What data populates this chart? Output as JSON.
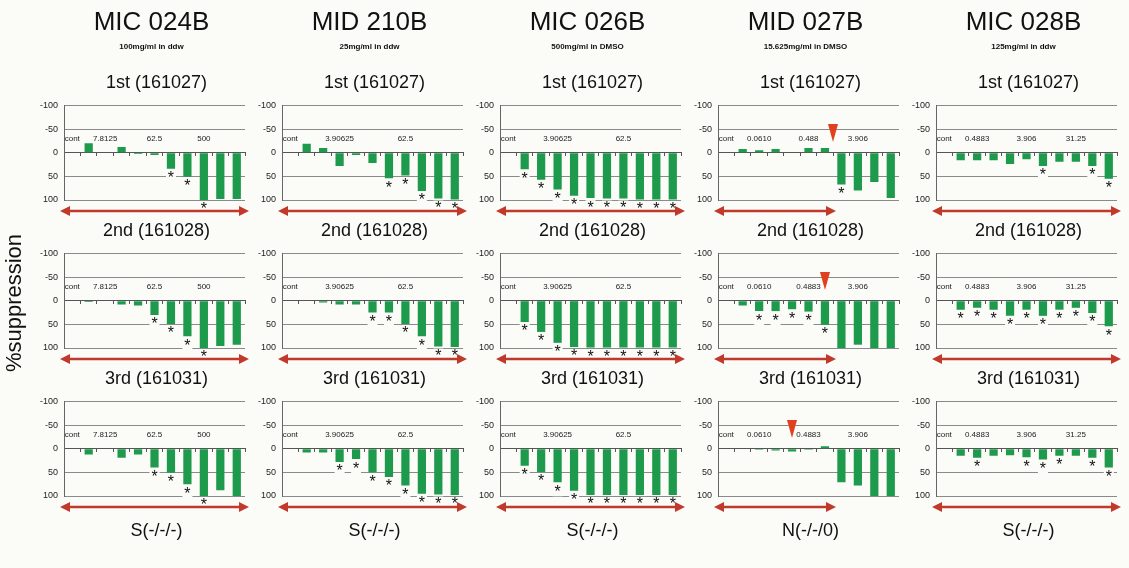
{
  "chart_data": [
    {
      "type": "bar",
      "title": "1st (161027)",
      "annotations": [
        "MIC 024B",
        "100mg/ml in ddw"
      ],
      "categories": [
        "cont",
        null,
        "7.8125",
        null,
        null,
        "62.5",
        null,
        null,
        "500",
        null,
        null
      ],
      "values": [
        0,
        -20,
        1,
        -12,
        3,
        5,
        34,
        51,
        100,
        98,
        98
      ],
      "value_labels": [
        null,
        null,
        null,
        null,
        null,
        null,
        "*",
        "*",
        "*",
        null,
        null
      ],
      "color": "#1e9a4c",
      "ylim": [
        100,
        -100
      ],
      "yticks": [
        -100,
        -50,
        0,
        50,
        100
      ],
      "grid": "y"
    },
    {
      "type": "bar",
      "title": "1st (161027)",
      "annotations": [
        "MID 210B",
        "25mg/ml in ddw"
      ],
      "categories": [
        "cont",
        null,
        null,
        "3.90625",
        null,
        null,
        null,
        "62.5",
        null,
        null,
        null
      ],
      "values": [
        0,
        -19,
        -10,
        28,
        5,
        22,
        54,
        48,
        81,
        97,
        99
      ],
      "value_labels": [
        null,
        null,
        null,
        null,
        null,
        null,
        "*",
        "*",
        "*",
        "*",
        "*"
      ],
      "color": "#1e9a4c",
      "ylim": [
        100,
        -100
      ],
      "yticks": [
        -100,
        -50,
        0,
        50,
        100
      ],
      "grid": "y"
    },
    {
      "type": "bar",
      "title": "1st (161027)",
      "annotations": [
        "MIC 026B",
        "500mg/ml in DMSO"
      ],
      "categories": [
        "cont",
        null,
        null,
        "3.90625",
        null,
        null,
        null,
        "62.5",
        null,
        null,
        null
      ],
      "values": [
        0,
        35,
        57,
        78,
        91,
        96,
        97,
        97,
        99,
        99,
        99
      ],
      "value_labels": [
        null,
        "*",
        "*",
        "*",
        "*",
        "*",
        "*",
        "*",
        "*",
        "*",
        "*"
      ],
      "color": "#1e9a4c",
      "ylim": [
        100,
        -100
      ],
      "yticks": [
        -100,
        -50,
        0,
        50,
        100
      ],
      "grid": "y"
    },
    {
      "type": "bar",
      "title": "1st (161027)",
      "annotations": [
        "MID 027B",
        "15.625mg/ml in DMSO"
      ],
      "categories": [
        "cont",
        null,
        "0.0610",
        null,
        null,
        "0.488",
        null,
        null,
        "3.906",
        null,
        null
      ],
      "values": [
        0,
        -8,
        -5,
        -8,
        null,
        -10,
        -10,
        67,
        80,
        62,
        96
      ],
      "value_labels": [
        null,
        null,
        null,
        null,
        null,
        null,
        null,
        "*",
        null,
        null,
        null
      ],
      "color": "#1e9a4c",
      "ylim": [
        100,
        -100
      ],
      "yticks": [
        -100,
        -50,
        0,
        50,
        100
      ],
      "grid": "y"
    },
    {
      "type": "bar",
      "title": "1st (161027)",
      "annotations": [
        "MIC 028B",
        "125mg/ml in ddw"
      ],
      "categories": [
        "cont",
        null,
        "0.4883",
        null,
        null,
        "3.906",
        null,
        null,
        "31.25",
        null,
        null
      ],
      "values": [
        0,
        16,
        16,
        16,
        24,
        14,
        28,
        19,
        19,
        28,
        55
      ],
      "value_labels": [
        null,
        null,
        null,
        null,
        null,
        null,
        "*",
        null,
        null,
        "*",
        "*"
      ],
      "color": "#1e9a4c",
      "ylim": [
        100,
        -100
      ],
      "yticks": [
        -100,
        -50,
        0,
        50,
        100
      ],
      "grid": "y"
    },
    {
      "type": "bar",
      "title": "2nd (161028)",
      "ylabel": "%suppression",
      "categories": [
        "cont",
        null,
        "7.8125",
        null,
        null,
        "62.5",
        null,
        null,
        "500",
        null,
        null
      ],
      "values": [
        0,
        3,
        1,
        8,
        10,
        30,
        49,
        75,
        100,
        96,
        93
      ],
      "value_labels": [
        null,
        null,
        null,
        null,
        null,
        "*",
        "*",
        "*",
        "*",
        null,
        null
      ],
      "color": "#1e9a4c",
      "ylim": [
        100,
        -100
      ],
      "yticks": [
        -100,
        -50,
        0,
        50,
        100
      ],
      "grid": "y"
    },
    {
      "type": "bar",
      "title": "2nd (161028)",
      "categories": [
        "cont",
        null,
        null,
        "3.90625",
        null,
        null,
        null,
        "62.5",
        null,
        null,
        null
      ],
      "values": [
        0,
        1,
        4,
        8,
        8,
        25,
        25,
        49,
        75,
        97,
        98
      ],
      "value_labels": [
        null,
        null,
        null,
        null,
        null,
        "*",
        "*",
        "*",
        "*",
        "*",
        "*"
      ],
      "color": "#1e9a4c",
      "ylim": [
        100,
        -100
      ],
      "yticks": [
        -100,
        -50,
        0,
        50,
        100
      ],
      "grid": "y"
    },
    {
      "type": "bar",
      "title": "2nd (161028)",
      "categories": [
        "cont",
        null,
        null,
        "3.90625",
        null,
        null,
        null,
        "62.5",
        null,
        null,
        null
      ],
      "values": [
        0,
        45,
        66,
        89,
        98,
        99,
        99,
        99,
        99,
        99,
        99
      ],
      "value_labels": [
        null,
        "*",
        "*",
        "*",
        "*",
        "*",
        "*",
        "*",
        "*",
        "*",
        "*"
      ],
      "color": "#1e9a4c",
      "ylim": [
        100,
        -100
      ],
      "yticks": [
        -100,
        -50,
        0,
        50,
        100
      ],
      "grid": "y"
    },
    {
      "type": "bar",
      "title": "2nd (161028)",
      "categories": [
        "cont",
        null,
        "0.0610",
        null,
        null,
        "0.4883",
        null,
        null,
        "3.906",
        null,
        null
      ],
      "values": [
        0,
        10,
        22,
        22,
        18,
        23,
        51,
        100,
        93,
        100,
        100
      ],
      "value_labels": [
        null,
        null,
        "*",
        "*",
        "*",
        "*",
        "*",
        null,
        null,
        null,
        null
      ],
      "color": "#1e9a4c",
      "ylim": [
        100,
        -100
      ],
      "yticks": [
        -100,
        -50,
        0,
        50,
        100
      ],
      "grid": "y"
    },
    {
      "type": "bar",
      "title": "2nd (161028)",
      "categories": [
        "cont",
        null,
        "0.4883",
        null,
        null,
        "3.906",
        null,
        null,
        "31.25",
        null,
        null
      ],
      "values": [
        0,
        19,
        15,
        19,
        32,
        19,
        32,
        19,
        15,
        26,
        54
      ],
      "value_labels": [
        null,
        "*",
        "*",
        "*",
        "*",
        "*",
        "*",
        "*",
        "*",
        "*",
        "*"
      ],
      "color": "#1e9a4c",
      "ylim": [
        100,
        -100
      ],
      "yticks": [
        -100,
        -50,
        0,
        50,
        100
      ],
      "grid": "y"
    },
    {
      "type": "bar",
      "title": "3rd (161031)",
      "xlabel": "S(-/-/-)",
      "categories": [
        "cont",
        null,
        "7.8125",
        null,
        null,
        "62.5",
        null,
        null,
        "500",
        null,
        null
      ],
      "values": [
        0,
        12,
        1,
        19,
        12,
        40,
        51,
        75,
        100,
        88,
        100
      ],
      "value_labels": [
        null,
        null,
        null,
        null,
        null,
        "*",
        "*",
        "*",
        "*",
        null,
        null
      ],
      "color": "#1e9a4c",
      "ylim": [
        100,
        -100
      ],
      "yticks": [
        -100,
        -50,
        0,
        50,
        100
      ],
      "grid": "y"
    },
    {
      "type": "bar",
      "title": "3rd (161031)",
      "xlabel": "S(-/-/-)",
      "categories": [
        "cont",
        null,
        null,
        "3.90625",
        null,
        null,
        null,
        "62.5",
        null,
        null,
        null
      ],
      "values": [
        0,
        8,
        8,
        28,
        22,
        50,
        60,
        78,
        95,
        97,
        98
      ],
      "value_labels": [
        null,
        null,
        null,
        "*",
        "*",
        "*",
        "*",
        "*",
        "*",
        "*",
        "*"
      ],
      "color": "#1e9a4c",
      "ylim": [
        100,
        -100
      ],
      "yticks": [
        -100,
        -50,
        0,
        50,
        100
      ],
      "grid": "y"
    },
    {
      "type": "bar",
      "title": "3rd (161031)",
      "xlabel": "S(-/-/-)",
      "categories": [
        "cont",
        null,
        null,
        "3.90625",
        null,
        null,
        null,
        "62.5",
        null,
        null,
        null
      ],
      "values": [
        0,
        36,
        49,
        71,
        89,
        98,
        98,
        98,
        98,
        98,
        98
      ],
      "value_labels": [
        null,
        "*",
        "*",
        "*",
        "*",
        "*",
        "*",
        "*",
        "*",
        "*",
        "*"
      ],
      "color": "#1e9a4c",
      "ylim": [
        100,
        -100
      ],
      "yticks": [
        -100,
        -50,
        0,
        50,
        100
      ],
      "grid": "y"
    },
    {
      "type": "bar",
      "title": "3rd  (161031)",
      "xlabel": "N(-/-/0)",
      "categories": [
        "cont",
        null,
        "0.0610",
        null,
        null,
        "0.4883",
        null,
        null,
        "3.906",
        null,
        null
      ],
      "values": [
        0,
        -1,
        2,
        4,
        6,
        2,
        -5,
        71,
        78,
        100,
        100
      ],
      "color": "#1e9a4c",
      "ylim": [
        100,
        -100
      ],
      "yticks": [
        -100,
        -50,
        0,
        50,
        100
      ],
      "grid": "y"
    },
    {
      "type": "bar",
      "title": "3rd (161031)",
      "xlabel": "S(-/-/-)",
      "categories": [
        "cont",
        null,
        "0.4883",
        null,
        null,
        "3.906",
        null,
        null,
        "31.25",
        null,
        null
      ],
      "values": [
        0,
        15,
        19,
        15,
        14,
        18,
        23,
        15,
        15,
        19,
        40
      ],
      "value_labels": [
        null,
        null,
        "*",
        null,
        null,
        "*",
        "*",
        "*",
        null,
        "*",
        "*"
      ],
      "color": "#1e9a4c",
      "ylim": [
        100,
        -100
      ],
      "yticks": [
        -100,
        -50,
        0,
        50,
        100
      ],
      "grid": "y"
    }
  ]
}
